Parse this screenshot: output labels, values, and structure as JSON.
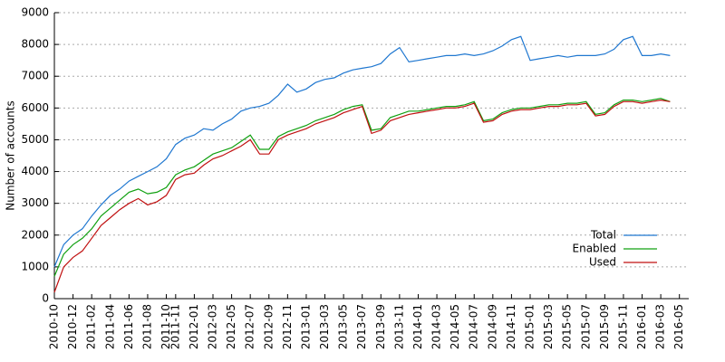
{
  "chart_data": {
    "type": "line",
    "y_label": "Number of accounts",
    "x": [
      "2010-10",
      "2010-11",
      "2010-12",
      "2011-01",
      "2011-02",
      "2011-03",
      "2011-04",
      "2011-05",
      "2011-06",
      "2011-07",
      "2011-08",
      "2011-09",
      "2011-10",
      "2011-11",
      "2011-12",
      "2012-01",
      "2012-02",
      "2012-03",
      "2012-04",
      "2012-05",
      "2012-06",
      "2012-07",
      "2012-08",
      "2012-09",
      "2012-10",
      "2012-11",
      "2012-12",
      "2013-01",
      "2013-02",
      "2013-03",
      "2013-04",
      "2013-05",
      "2013-06",
      "2013-07",
      "2013-08",
      "2013-09",
      "2013-10",
      "2013-11",
      "2013-12",
      "2014-01",
      "2014-02",
      "2014-03",
      "2014-04",
      "2014-05",
      "2014-06",
      "2014-07",
      "2014-08",
      "2014-09",
      "2014-10",
      "2014-11",
      "2014-12",
      "2015-01",
      "2015-02",
      "2015-03",
      "2015-04",
      "2015-05",
      "2015-06",
      "2015-07",
      "2015-08",
      "2015-09",
      "2015-10",
      "2015-11",
      "2015-12",
      "2016-01",
      "2016-02",
      "2016-03",
      "2016-04"
    ],
    "series": [
      {
        "name": "Total",
        "color": "#1f77d0",
        "values": [
          1000,
          1700,
          2000,
          2200,
          2600,
          2950,
          3250,
          3450,
          3700,
          3850,
          4000,
          4150,
          4400,
          4850,
          5050,
          5150,
          5350,
          5300,
          5500,
          5650,
          5900,
          6000,
          6050,
          6150,
          6400,
          6750,
          6500,
          6600,
          6800,
          6900,
          6950,
          7100,
          7200,
          7250,
          7300,
          7400,
          7700,
          7900,
          7450,
          7500,
          7550,
          7600,
          7650,
          7650,
          7700,
          7650,
          7700,
          7800,
          7950,
          8150,
          8250,
          7500,
          7550,
          7600,
          7650,
          7600,
          7650,
          7650,
          7650,
          7700,
          7850,
          8150,
          8250,
          7650,
          7650,
          7700,
          7650
        ]
      },
      {
        "name": "Enabled",
        "color": "#10a010",
        "values": [
          700,
          1400,
          1700,
          1900,
          2200,
          2600,
          2850,
          3100,
          3350,
          3450,
          3300,
          3350,
          3500,
          3900,
          4050,
          4150,
          4350,
          4550,
          4650,
          4750,
          4950,
          5150,
          4700,
          4700,
          5100,
          5250,
          5350,
          5450,
          5600,
          5700,
          5800,
          5950,
          6050,
          6100,
          5300,
          5350,
          5700,
          5800,
          5900,
          5900,
          5950,
          6000,
          6050,
          6050,
          6100,
          6200,
          5600,
          5650,
          5850,
          5950,
          6000,
          6000,
          6050,
          6100,
          6100,
          6150,
          6150,
          6200,
          5800,
          5850,
          6100,
          6250,
          6250,
          6200,
          6250,
          6300,
          6200
        ]
      },
      {
        "name": "Used",
        "color": "#c01010",
        "values": [
          200,
          1000,
          1300,
          1500,
          1900,
          2300,
          2550,
          2800,
          3000,
          3150,
          2950,
          3050,
          3250,
          3750,
          3900,
          3950,
          4200,
          4400,
          4500,
          4650,
          4800,
          5000,
          4550,
          4550,
          5000,
          5150,
          5250,
          5350,
          5500,
          5600,
          5700,
          5850,
          5950,
          6050,
          5200,
          5300,
          5600,
          5700,
          5800,
          5850,
          5900,
          5950,
          6000,
          6000,
          6050,
          6150,
          5550,
          5600,
          5800,
          5900,
          5950,
          5950,
          6000,
          6050,
          6050,
          6100,
          6100,
          6150,
          5750,
          5800,
          6050,
          6200,
          6200,
          6150,
          6200,
          6250,
          6200
        ]
      }
    ],
    "xlim": [
      "2010-10",
      "2016-06"
    ],
    "xticks": [
      "2010-10",
      "2010-12",
      "2011-02",
      "2011-04",
      "2011-06",
      "2011-08",
      "2011-10",
      "2011-11",
      "2012-01",
      "2012-03",
      "2012-05",
      "2012-07",
      "2012-09",
      "2012-11",
      "2013-01",
      "2013-03",
      "2013-05",
      "2013-07",
      "2013-09",
      "2013-11",
      "2014-01",
      "2014-03",
      "2014-05",
      "2014-07",
      "2014-09",
      "2014-11",
      "2015-01",
      "2015-03",
      "2015-05",
      "2015-07",
      "2015-09",
      "2015-11",
      "2016-01",
      "2016-03",
      "2016-05"
    ],
    "ylim": [
      0,
      9000
    ],
    "yticks": [
      0,
      1000,
      2000,
      3000,
      4000,
      5000,
      6000,
      7000,
      8000,
      9000
    ],
    "grid": true,
    "legend": "lower right"
  }
}
